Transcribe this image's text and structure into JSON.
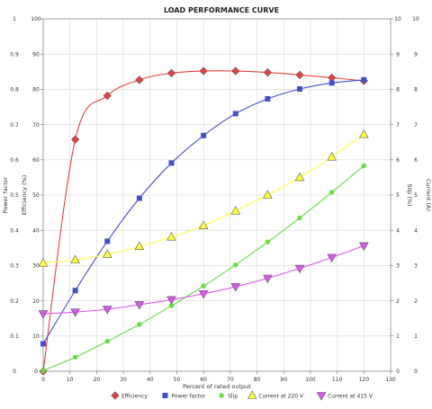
{
  "chart_data": {
    "type": "line",
    "title": "LOAD PERFORMANCE CURVE",
    "xlabel": "Percent of rated output",
    "xlim": [
      0,
      130
    ],
    "x_ticks": [
      "0",
      "10",
      "20",
      "30",
      "40",
      "50",
      "60",
      "70",
      "80",
      "90",
      "100",
      "110",
      "120",
      "130"
    ],
    "axes": {
      "power_factor": {
        "label": "Power factor",
        "range": [
          0,
          1
        ],
        "ticks": [
          "0",
          "0.1",
          "0.2",
          "0.3",
          "0.4",
          "0.5",
          "0.6",
          "0.7",
          "0.8",
          "0.9",
          "1"
        ]
      },
      "efficiency": {
        "label": "Efficiency (%)",
        "range": [
          0,
          100
        ],
        "ticks": [
          "0",
          "10",
          "20",
          "30",
          "40",
          "50",
          "60",
          "70",
          "80",
          "90",
          "100"
        ]
      },
      "slip": {
        "label": "Slip (%)",
        "range": [
          0,
          10
        ],
        "ticks": [
          "0",
          "1",
          "2",
          "3",
          "4",
          "5",
          "6",
          "7",
          "8",
          "9",
          "10"
        ]
      },
      "current": {
        "label": "Current (A)",
        "range": [
          0,
          10
        ],
        "ticks": [
          "0",
          "1",
          "2",
          "3",
          "4",
          "5",
          "6",
          "7",
          "8",
          "9",
          "10"
        ]
      }
    },
    "grid": true,
    "legend_position": "bottom",
    "series": [
      {
        "name": "Efficiency",
        "color": "#e84040",
        "marker": "diamond",
        "axis": "efficiency",
        "x": [
          0,
          12,
          24,
          36,
          48,
          60,
          72,
          84,
          96,
          108,
          120
        ],
        "y": [
          0,
          65.8,
          78.2,
          82.7,
          84.6,
          85.2,
          85.2,
          84.8,
          84.1,
          83.3,
          82.4
        ]
      },
      {
        "name": "Power factor",
        "color": "#4350c8",
        "marker": "square",
        "axis": "power_factor",
        "x": [
          0,
          12,
          24,
          36,
          48,
          60,
          72,
          84,
          96,
          108,
          120
        ],
        "y": [
          0.078,
          0.229,
          0.369,
          0.491,
          0.591,
          0.669,
          0.731,
          0.773,
          0.801,
          0.818,
          0.827
        ]
      },
      {
        "name": "Slip",
        "color": "#66dd44",
        "marker": "circle",
        "axis": "slip",
        "x": [
          0,
          12,
          24,
          36,
          48,
          60,
          72,
          84,
          96,
          108,
          120
        ],
        "y": [
          0.02,
          0.4,
          0.85,
          1.33,
          1.86,
          2.42,
          3.02,
          3.67,
          4.35,
          5.08,
          5.83
        ]
      },
      {
        "name": "Current at 220 V",
        "color": "#ffff44",
        "marker": "triangle-up",
        "axis": "current",
        "x": [
          0,
          12,
          24,
          36,
          48,
          60,
          72,
          84,
          96,
          108,
          120
        ],
        "y": [
          3.07,
          3.16,
          3.32,
          3.54,
          3.81,
          4.13,
          4.55,
          5.0,
          5.5,
          6.08,
          6.72
        ]
      },
      {
        "name": "Current at 415 V",
        "color": "#dd55ee",
        "marker": "triangle-down",
        "axis": "current",
        "x": [
          0,
          12,
          24,
          36,
          48,
          60,
          72,
          84,
          96,
          108,
          120
        ],
        "y": [
          1.63,
          1.68,
          1.76,
          1.89,
          2.03,
          2.2,
          2.4,
          2.64,
          2.92,
          3.23,
          3.56
        ]
      }
    ]
  }
}
